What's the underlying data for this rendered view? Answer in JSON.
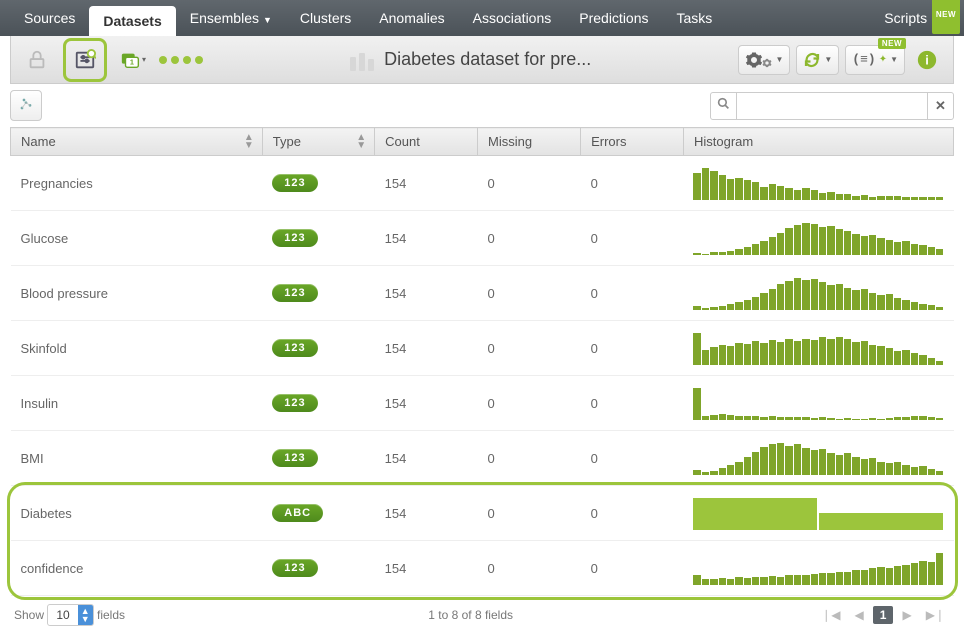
{
  "nav": {
    "items": [
      "Sources",
      "Datasets",
      "Ensembles",
      "Clusters",
      "Anomalies",
      "Associations",
      "Predictions",
      "Tasks"
    ],
    "active_index": 1,
    "dropdown_indices": [
      2
    ],
    "right": "Scripts",
    "new_badge": "NEW"
  },
  "toolbar": {
    "title": "Diabetes dataset for pre...",
    "title_bar_heights": [
      14,
      18,
      12
    ],
    "title_bar_color": "#d7d7d7",
    "highlight_color": "#9cc53c"
  },
  "search": {
    "placeholder": ""
  },
  "columns": [
    "Name",
    "Type",
    "Count",
    "Missing",
    "Errors",
    "Histogram"
  ],
  "sortable_cols": [
    0,
    1
  ],
  "type_pill_bg": "linear-gradient(#6aa727,#4e8a1c)",
  "histo_bar_color": "#7fa52a",
  "histo_cat_color": "#9cc53c",
  "rows": [
    {
      "name": "Pregnancies",
      "type": "123",
      "count": 154,
      "missing": 0,
      "errors": 0,
      "hist": [
        85,
        100,
        92,
        78,
        65,
        70,
        62,
        55,
        42,
        50,
        44,
        38,
        32,
        36,
        30,
        22,
        26,
        18,
        20,
        14,
        16,
        10,
        13,
        12,
        11,
        9,
        9,
        8,
        8,
        8
      ]
    },
    {
      "name": "Glucose",
      "type": "123",
      "count": 154,
      "missing": 0,
      "errors": 0,
      "hist": [
        6,
        4,
        8,
        10,
        14,
        20,
        26,
        34,
        44,
        56,
        70,
        84,
        94,
        100,
        96,
        88,
        92,
        80,
        74,
        66,
        60,
        64,
        52,
        48,
        40,
        44,
        34,
        30,
        24,
        18
      ]
    },
    {
      "name": "Blood pressure",
      "type": "123",
      "count": 154,
      "missing": 0,
      "errors": 0,
      "hist": [
        14,
        6,
        8,
        12,
        18,
        24,
        32,
        42,
        54,
        66,
        80,
        92,
        100,
        94,
        98,
        86,
        78,
        82,
        70,
        62,
        66,
        54,
        46,
        50,
        38,
        32,
        26,
        20,
        16,
        10
      ]
    },
    {
      "name": "Skinfold",
      "type": "123",
      "count": 154,
      "missing": 0,
      "errors": 0,
      "hist": [
        100,
        48,
        56,
        64,
        60,
        70,
        66,
        74,
        70,
        78,
        72,
        80,
        74,
        82,
        78,
        86,
        80,
        88,
        82,
        72,
        76,
        64,
        58,
        52,
        44,
        48,
        36,
        30,
        22,
        14
      ]
    },
    {
      "name": "Insulin",
      "type": "123",
      "count": 154,
      "missing": 0,
      "errors": 0,
      "hist": [
        100,
        14,
        16,
        18,
        16,
        14,
        12,
        14,
        10,
        12,
        10,
        8,
        10,
        8,
        6,
        8,
        6,
        4,
        6,
        4,
        4,
        6,
        4,
        6,
        8,
        10,
        12,
        14,
        8,
        6
      ]
    },
    {
      "name": "BMI",
      "type": "123",
      "count": 154,
      "missing": 0,
      "errors": 0,
      "hist": [
        16,
        10,
        14,
        22,
        30,
        42,
        56,
        72,
        86,
        96,
        100,
        92,
        96,
        84,
        78,
        82,
        70,
        64,
        68,
        56,
        50,
        54,
        42,
        36,
        40,
        30,
        24,
        28,
        18,
        12
      ]
    },
    {
      "name": "Diabetes",
      "type": "ABC",
      "count": 154,
      "missing": 0,
      "errors": 0,
      "hist_cat": [
        100,
        52
      ]
    },
    {
      "name": "confidence",
      "type": "123",
      "count": 154,
      "missing": 0,
      "errors": 0,
      "hist": [
        30,
        18,
        20,
        22,
        20,
        24,
        22,
        26,
        24,
        28,
        26,
        30,
        32,
        30,
        34,
        36,
        38,
        42,
        40,
        46,
        48,
        52,
        56,
        54,
        60,
        64,
        70,
        76,
        72,
        100
      ]
    }
  ],
  "highlight_rows_from": 6,
  "footer": {
    "show_label": "Show",
    "page_size": "10",
    "fields_label": "fields",
    "range": "1 to 8 of 8 fields",
    "current_page": "1"
  }
}
